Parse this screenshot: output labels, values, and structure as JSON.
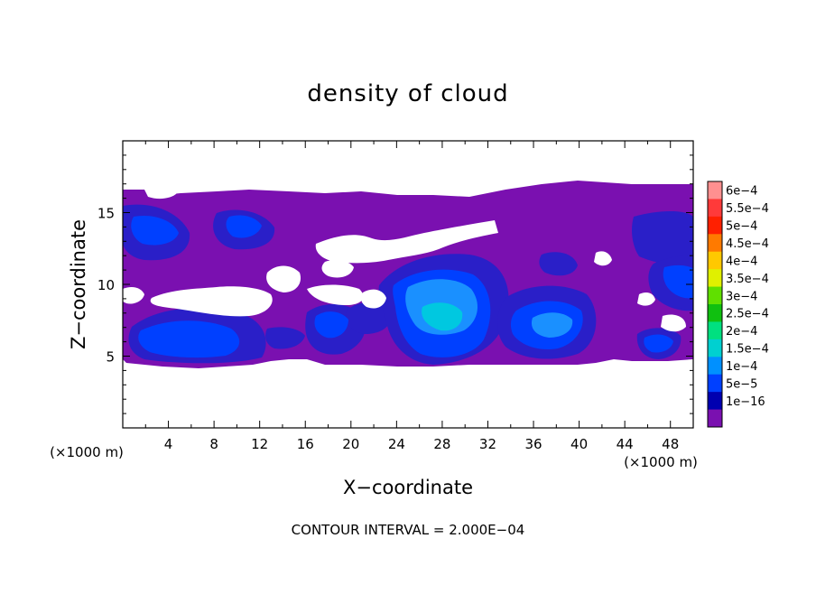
{
  "chart_data": {
    "type": "heatmap",
    "title": "density of cloud",
    "xlabel": "X−coordinate",
    "ylabel": "Z−coordinate",
    "x_unit": "(×1000 m)",
    "y_unit": "(×1000 m)",
    "x_ticks": [
      "4",
      "8",
      "12",
      "16",
      "20",
      "24",
      "28",
      "32",
      "36",
      "40",
      "44",
      "48"
    ],
    "y_ticks": [
      "5",
      "10",
      "15"
    ],
    "xlim": [
      0,
      50
    ],
    "ylim": [
      0,
      20
    ],
    "footer": "CONTOUR INTERVAL = 2.000E−04",
    "colorbar": {
      "labels": [
        "6e−4",
        "5.5e−4",
        "5e−4",
        "4.5e−4",
        "4e−4",
        "3.5e−4",
        "3e−4",
        "2.5e−4",
        "2e−4",
        "1.5e−4",
        "1e−4",
        "5e−5",
        "1e−16"
      ],
      "colors": [
        "#ff9090",
        "#ff3a3a",
        "#ff2000",
        "#ff7a00",
        "#ffc800",
        "#e0f000",
        "#60e000",
        "#10c010",
        "#00e080",
        "#00d0d0",
        "#0090ff",
        "#0040ff",
        "#0000b0",
        "#7a10b0"
      ]
    }
  }
}
